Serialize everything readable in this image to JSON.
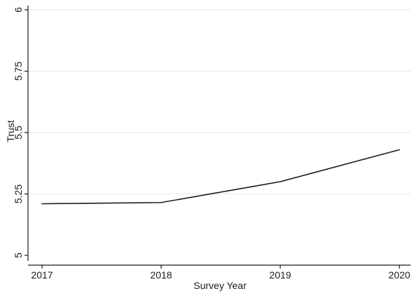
{
  "chart_data": {
    "type": "line",
    "title": "",
    "xlabel": "Survey Year",
    "ylabel": "Trust",
    "categories": [
      "2017",
      "2018",
      "2019",
      "2020"
    ],
    "x": [
      2017,
      2018,
      2019,
      2020
    ],
    "series": [
      {
        "values": [
          5.21,
          5.215,
          5.3,
          5.43
        ]
      }
    ],
    "ylim": [
      5,
      6
    ],
    "xlim": [
      2017,
      2020
    ],
    "yticks": [
      5,
      5.25,
      5.5,
      5.75,
      6
    ],
    "ytick_labels": [
      "5",
      "5.25",
      "5.5",
      "5.75",
      "6"
    ],
    "xticks": [
      2017,
      2018,
      2019,
      2020
    ],
    "xtick_labels": [
      "2017",
      "2018",
      "2019",
      "2020"
    ],
    "grid": "horizontal",
    "legend": "none",
    "colors": {
      "line": "#1a1a1a",
      "grid": "#e6e6e6",
      "axis": "#1a1a1a"
    }
  }
}
